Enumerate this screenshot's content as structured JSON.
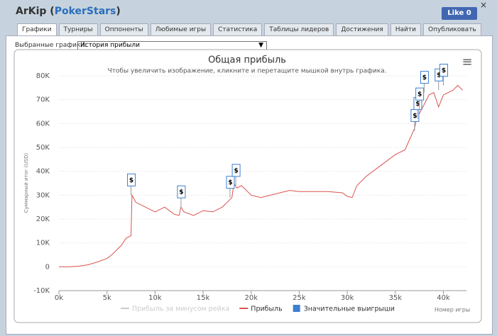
{
  "header": {
    "player": "ArKip",
    "open": "(",
    "site": "PokerStars",
    "close": ")",
    "like": "Like 0",
    "close_button": "×"
  },
  "tabs": [
    "Графики",
    "Турниры",
    "Оппоненты",
    "Любимые игры",
    "Статистика",
    "Таблицы лидеров",
    "Достижения",
    "Найти",
    "Опубликовать"
  ],
  "selector": {
    "label": "Выбранные графики:",
    "value": "История прибыли",
    "arrow": "▼"
  },
  "chart_data": {
    "type": "line",
    "title": "Общая прибыль",
    "subtitle": "Чтобы увеличить изображение, кликните и перетащите мышкой внутрь графика.",
    "y_label": "Суммарный итог (USD)",
    "x_label": "Номер игры",
    "menu": "≡",
    "xlim": [
      0,
      42400
    ],
    "ylim": [
      -10000,
      80000
    ],
    "grid": true,
    "xticks": [
      {
        "value": 0,
        "label": "0k"
      },
      {
        "value": 5000,
        "label": "5k"
      },
      {
        "value": 10000,
        "label": "10k"
      },
      {
        "value": 15000,
        "label": "15k"
      },
      {
        "value": 20000,
        "label": "20k"
      },
      {
        "value": 25000,
        "label": "25k"
      },
      {
        "value": 30000,
        "label": "30k"
      },
      {
        "value": 35000,
        "label": "35k"
      },
      {
        "value": 40000,
        "label": "40k"
      }
    ],
    "yticks": [
      {
        "value": -10000,
        "label": "-10K"
      },
      0,
      {
        "value": 10000,
        "label": "10K"
      },
      {
        "value": 20000,
        "label": "20K"
      },
      {
        "value": 30000,
        "label": "30K"
      },
      {
        "value": 40000,
        "label": "40K"
      },
      {
        "value": 50000,
        "label": "50K"
      },
      {
        "value": 60000,
        "label": "60K"
      },
      {
        "value": 70000,
        "label": "70K"
      },
      {
        "value": 80000,
        "label": "80K"
      }
    ],
    "series": [
      {
        "name": "Прибыль за минусом рейка",
        "color": "#cccccc",
        "hidden": true
      },
      {
        "name": "Прибыль",
        "color": "#d9534f",
        "x": [
          0,
          1000,
          2000,
          3000,
          4000,
          5000,
          5500,
          6000,
          6500,
          7000,
          7500,
          7600,
          8000,
          9000,
          10000,
          11000,
          12000,
          12500,
          12700,
          13000,
          14000,
          15000,
          16000,
          17000,
          17500,
          18000,
          18200,
          18500,
          19000,
          20000,
          21000,
          22000,
          23000,
          24000,
          25000,
          28000,
          29500,
          30000,
          30500,
          31000,
          32000,
          33000,
          34000,
          35000,
          36000,
          37000,
          37200,
          38000,
          38500,
          39000,
          39500,
          40000,
          41000,
          41500,
          42000
        ],
        "values": [
          0,
          0,
          200,
          800,
          2000,
          3500,
          5000,
          7000,
          9000,
          12000,
          13000,
          30000,
          27000,
          25000,
          23000,
          25000,
          22000,
          21500,
          25000,
          23000,
          21500,
          23500,
          23000,
          25000,
          27000,
          29000,
          35000,
          33000,
          34000,
          30000,
          29000,
          30000,
          31000,
          32000,
          31500,
          31500,
          31000,
          29500,
          29000,
          34000,
          38000,
          41000,
          44000,
          47000,
          49000,
          58000,
          62000,
          68000,
          72000,
          73000,
          67000,
          72000,
          74000,
          76000,
          74000
        ]
      }
    ],
    "flags": {
      "name": "Значительные выигрыши",
      "color": "#3c7fd1",
      "label": "$",
      "x": [
        7500,
        12700,
        17800,
        18400,
        37000,
        37300,
        37500,
        38000,
        39500,
        40000
      ],
      "values": [
        30000,
        25000,
        29000,
        34000,
        57000,
        62000,
        66000,
        73000,
        74000,
        76000
      ]
    }
  }
}
